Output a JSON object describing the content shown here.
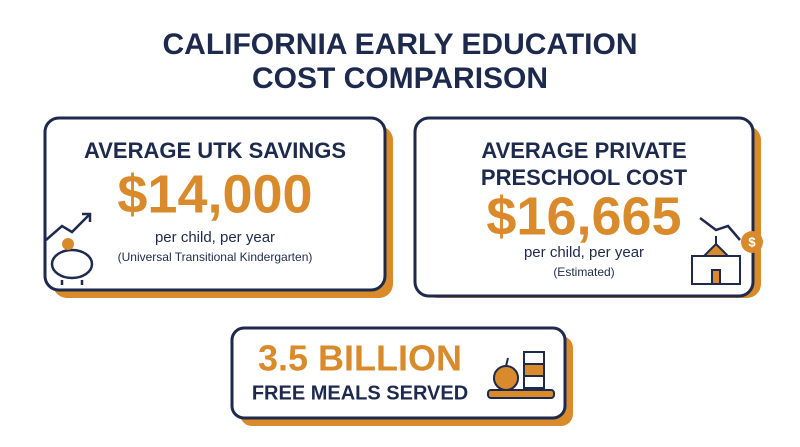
{
  "header": {
    "title_lines": [
      "CALIFORNIA EARLY EDUCATION",
      "COST COMPARISON"
    ]
  },
  "cards": [
    {
      "heading_lines": [
        "AVERAGE UTK SAVINGS"
      ],
      "amount": "$14,000",
      "note": "per child, per year",
      "subnote": "(Universal Transitional Kindergarten)"
    },
    {
      "heading_lines": [
        "AVERAGE PRIVATE",
        "PRESCHOOL COST"
      ],
      "amount": "$16,665",
      "note": "per child, per year",
      "subnote": "(Estimated)"
    }
  ],
  "meals": {
    "amount": "3.5 BILLION",
    "label": "FREE MEALS SERVED"
  }
}
